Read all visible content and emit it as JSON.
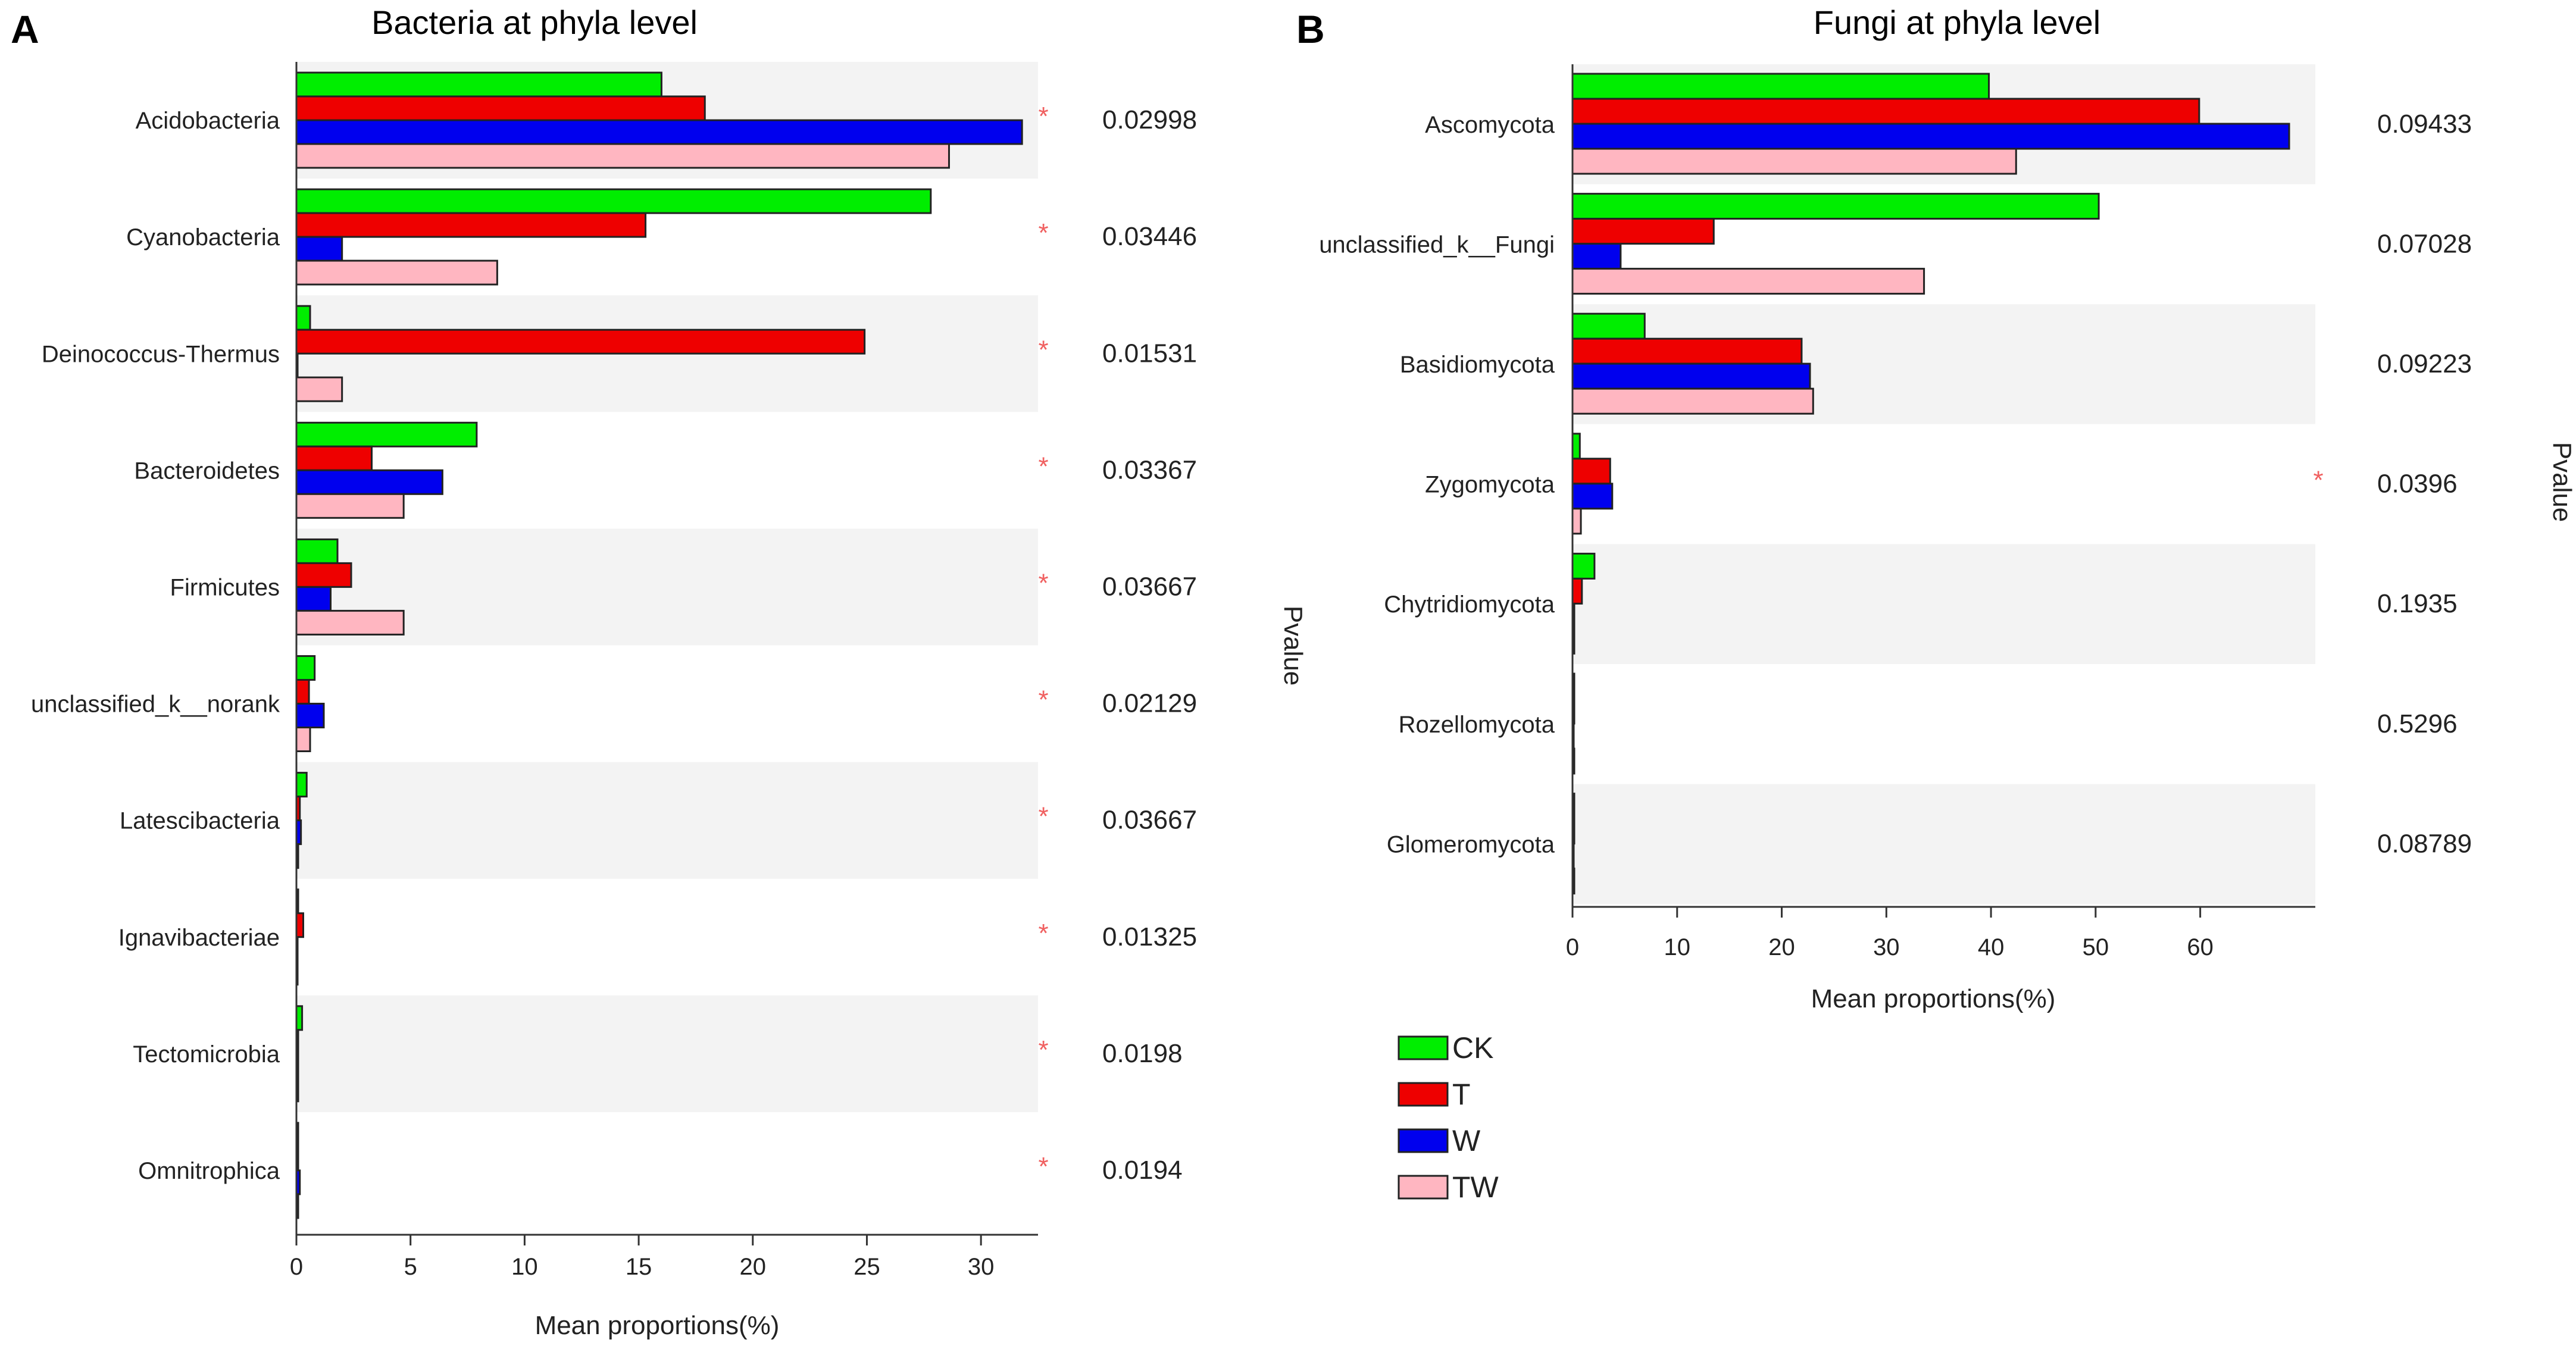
{
  "legend": {
    "entries": [
      {
        "name": "CK",
        "color": "#00ee00"
      },
      {
        "name": "T",
        "color": "#ee0000"
      },
      {
        "name": "W",
        "color": "#0000ee"
      },
      {
        "name": "TW",
        "color": "#ffb6c1"
      }
    ]
  },
  "chart_data": [
    {
      "type": "bar",
      "panel_label": "A",
      "title": "Bacteria at phyla level",
      "xlabel": "Mean proportions(%)",
      "pvalue_label": "Pvalue",
      "xlim": [
        0,
        32.5
      ],
      "xticks": [
        0,
        5,
        10,
        15,
        20,
        25,
        30
      ],
      "significance_marker": "*",
      "series_names": [
        "CK",
        "T",
        "W",
        "TW"
      ],
      "categories": [
        "Acidobacteria",
        "Cyanobacteria",
        "Deinococcus-Thermus",
        "Bacteroidetes",
        "Firmicutes",
        "unclassified_k__norank",
        "Latescibacteria",
        "Ignavibacteriae",
        "Tectomicrobia",
        "Omnitrophica"
      ],
      "series": [
        {
          "name": "CK",
          "values": [
            16.0,
            27.8,
            0.6,
            7.9,
            1.8,
            0.8,
            0.45,
            0.05,
            0.25,
            0.05
          ]
        },
        {
          "name": "T",
          "values": [
            17.9,
            15.3,
            24.9,
            3.3,
            2.4,
            0.55,
            0.15,
            0.3,
            0.05,
            0.05
          ]
        },
        {
          "name": "W",
          "values": [
            31.8,
            2.0,
            0.0,
            6.4,
            1.5,
            1.2,
            0.2,
            0.0,
            0.05,
            0.15
          ]
        },
        {
          "name": "TW",
          "values": [
            28.6,
            8.8,
            2.0,
            4.7,
            4.7,
            0.6,
            0.05,
            0.0,
            0.05,
            0.05
          ]
        }
      ],
      "pvalues": [
        "0.02998",
        "0.03446",
        "0.01531",
        "0.03367",
        "0.03667",
        "0.02129",
        "0.03667",
        "0.01325",
        "0.0198",
        "0.0194"
      ],
      "significant": [
        true,
        true,
        true,
        true,
        true,
        true,
        true,
        true,
        true,
        true
      ]
    },
    {
      "type": "bar",
      "panel_label": "B",
      "title": "Fungi at phyla level",
      "xlabel": "Mean proportions(%)",
      "pvalue_label": "Pvalue",
      "xlim": [
        0,
        71
      ],
      "xticks": [
        0,
        10,
        20,
        30,
        40,
        50,
        60
      ],
      "significance_marker": "*",
      "series_names": [
        "CK",
        "T",
        "W",
        "TW"
      ],
      "categories": [
        "Ascomycota",
        "unclassified_k__Fungi",
        "Basidiomycota",
        "Zygomycota",
        "Chytridiomycota",
        "Rozellomycota",
        "Glomeromycota"
      ],
      "series": [
        {
          "name": "CK",
          "values": [
            39.8,
            50.3,
            6.9,
            0.7,
            2.1,
            0.05,
            0.05
          ]
        },
        {
          "name": "T",
          "values": [
            59.9,
            13.5,
            21.9,
            3.6,
            0.9,
            0.05,
            0.05
          ]
        },
        {
          "name": "W",
          "values": [
            68.5,
            4.6,
            22.7,
            3.8,
            0.1,
            0.0,
            0.0
          ]
        },
        {
          "name": "TW",
          "values": [
            42.4,
            33.6,
            23.0,
            0.8,
            0.1,
            0.1,
            0.1
          ]
        }
      ],
      "pvalues": [
        "0.09433",
        "0.07028",
        "0.09223",
        "0.0396",
        "0.1935",
        "0.5296",
        "0.08789"
      ],
      "significant": [
        false,
        false,
        false,
        true,
        false,
        false,
        false
      ]
    }
  ]
}
